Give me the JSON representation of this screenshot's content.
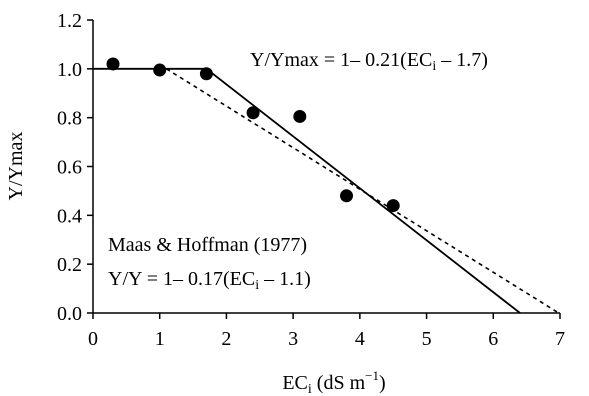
{
  "chart_data": {
    "type": "scatter",
    "xlabel": {
      "main": "EC",
      "sub": "i",
      "rest": " (dS m",
      "sup": "−1",
      "close": ")"
    },
    "ylabel": "Y/Ymax",
    "xlim": [
      0,
      7
    ],
    "ylim": [
      0,
      1.2
    ],
    "x_ticks": [
      "0",
      "1",
      "2",
      "3",
      "4",
      "5",
      "6",
      "7"
    ],
    "y_ticks": [
      "0.0",
      "0.2",
      "0.4",
      "0.6",
      "0.8",
      "1.0",
      "1.2"
    ],
    "grid": false,
    "points": [
      {
        "x": 0.3,
        "y": 1.02
      },
      {
        "x": 1.0,
        "y": 0.995
      },
      {
        "x": 1.7,
        "y": 0.98
      },
      {
        "x": 2.4,
        "y": 0.82
      },
      {
        "x": 3.1,
        "y": 0.805
      },
      {
        "x": 3.8,
        "y": 0.48
      },
      {
        "x": 4.5,
        "y": 0.44
      }
    ],
    "fitted_line": {
      "style": "solid",
      "points": [
        {
          "x": 0,
          "y": 1.0
        },
        {
          "x": 1.7,
          "y": 1.0
        },
        {
          "x": 6.4,
          "y": 0.0
        }
      ],
      "label": {
        "pre": "Y/Ymax = 1– 0.21(EC",
        "sub": "i",
        "post": " – 1.7)"
      }
    },
    "reference_line": {
      "style": "dashed",
      "points": [
        {
          "x": 1.1,
          "y": 1.0
        },
        {
          "x": 6.98,
          "y": 0.0
        }
      ],
      "label_line1": "Maas & Hoffman (1977)",
      "label_line2": {
        "pre": "Y/Y = 1– 0.17(EC",
        "sub": "i",
        "post": " – 1.1)"
      }
    }
  }
}
